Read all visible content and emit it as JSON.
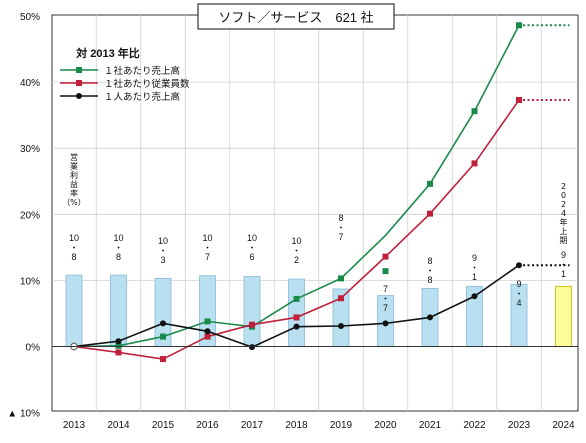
{
  "chart_data": {
    "type": "bar+line",
    "title": "ソフト／サービス　621 社",
    "legend_heading": "対 2013 年比",
    "legend_placement": "top-left",
    "grid": true,
    "y_axis": {
      "ylim": [
        -10,
        50
      ],
      "ticks": [
        {
          "value": 50,
          "label": "50%"
        },
        {
          "value": 40,
          "label": "40%"
        },
        {
          "value": 30,
          "label": "30%"
        },
        {
          "value": 20,
          "label": "20%"
        },
        {
          "value": 10,
          "label": "10%"
        },
        {
          "value": 0,
          "label": "0%"
        },
        {
          "value": -10,
          "label": "▲ 10%"
        }
      ]
    },
    "categories": [
      "2013",
      "2014",
      "2015",
      "2016",
      "2017",
      "2018",
      "2019",
      "2020",
      "2021",
      "2022",
      "2023",
      "2024"
    ],
    "bars": {
      "name": "営業利益率（%）",
      "label_chars": [
        "営",
        "業",
        "利",
        "益",
        "率",
        "（%）"
      ],
      "values": [
        10.8,
        10.8,
        10.3,
        10.7,
        10.6,
        10.2,
        8.7,
        7.7,
        8.8,
        9.1,
        9.4,
        9.1
      ],
      "labels": [
        "10.8",
        "10.8",
        "10.3",
        "10.7",
        "10.6",
        "10.2",
        "8.7",
        "7.7",
        "8.8",
        "9.1",
        "9.4",
        "9.1"
      ],
      "color": "#b8e0f0",
      "border": "#8ab8d8",
      "forecast_index": 11,
      "forecast_color": "#ffff99",
      "forecast_border": "#c8b000",
      "forecast_note": "2024年上期"
    },
    "series": [
      {
        "name": "１社あたり売上高",
        "color": "#1a8a4a",
        "marker": "square",
        "values": [
          0,
          0.1,
          1.5,
          3.8,
          3.0,
          7.2,
          10.3,
          16.8,
          24.6,
          35.6,
          48.6,
          null
        ],
        "point_markers": [
          true,
          true,
          true,
          true,
          true,
          true,
          true,
          false,
          true,
          true,
          true,
          false
        ],
        "extra_point": {
          "x": "2020",
          "y": 11.4
        },
        "forecast_to": 48.6
      },
      {
        "name": "１社あたり従業員数",
        "color": "#c0203a",
        "marker": "square",
        "values": [
          0,
          -0.9,
          -1.9,
          1.5,
          3.3,
          4.4,
          7.3,
          13.6,
          20.1,
          27.7,
          37.3,
          null
        ],
        "forecast_to": 37.3
      },
      {
        "name": "１人あたり売上高",
        "color": "#111111",
        "marker": "circle",
        "values": [
          0,
          0.8,
          3.5,
          2.3,
          -0.1,
          3.0,
          3.1,
          3.5,
          4.4,
          7.6,
          12.3,
          null
        ],
        "forecast_to": 12.3
      }
    ]
  }
}
